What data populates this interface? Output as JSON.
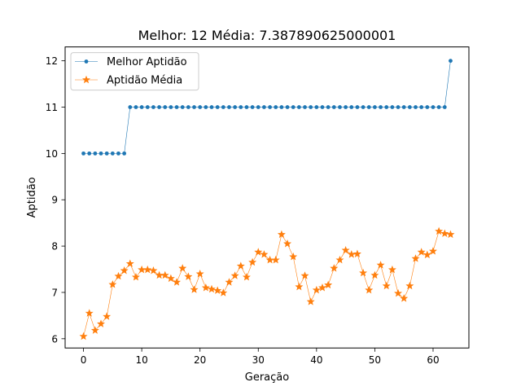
{
  "chart_data": {
    "type": "line",
    "title": "Melhor: 12 Média: 7.387890625000001",
    "xlabel": "Geração",
    "ylabel": "Aptidão",
    "xlim": [
      -3.15,
      66.15
    ],
    "ylim": [
      5.8,
      12.3
    ],
    "xticks": [
      0,
      10,
      20,
      30,
      40,
      50,
      60
    ],
    "yticks": [
      6,
      7,
      8,
      9,
      10,
      11,
      12
    ],
    "grid": false,
    "legend": "upper-left",
    "x": [
      0,
      1,
      2,
      3,
      4,
      5,
      6,
      7,
      8,
      9,
      10,
      11,
      12,
      13,
      14,
      15,
      16,
      17,
      18,
      19,
      20,
      21,
      22,
      23,
      24,
      25,
      26,
      27,
      28,
      29,
      30,
      31,
      32,
      33,
      34,
      35,
      36,
      37,
      38,
      39,
      40,
      41,
      42,
      43,
      44,
      45,
      46,
      47,
      48,
      49,
      50,
      51,
      52,
      53,
      54,
      55,
      56,
      57,
      58,
      59,
      60,
      61,
      62,
      63
    ],
    "series": [
      {
        "name": "Melhor Aptidão",
        "color": "#1f77b4",
        "marker": "circle",
        "values": [
          10,
          10,
          10,
          10,
          10,
          10,
          10,
          10,
          11,
          11,
          11,
          11,
          11,
          11,
          11,
          11,
          11,
          11,
          11,
          11,
          11,
          11,
          11,
          11,
          11,
          11,
          11,
          11,
          11,
          11,
          11,
          11,
          11,
          11,
          11,
          11,
          11,
          11,
          11,
          11,
          11,
          11,
          11,
          11,
          11,
          11,
          11,
          11,
          11,
          11,
          11,
          11,
          11,
          11,
          11,
          11,
          11,
          11,
          11,
          11,
          11,
          11,
          11,
          12
        ]
      },
      {
        "name": "Aptidão Média",
        "color": "#ff7f0e",
        "marker": "star",
        "values": [
          6.05,
          6.55,
          6.18,
          6.32,
          6.48,
          7.17,
          7.35,
          7.47,
          7.62,
          7.33,
          7.49,
          7.49,
          7.47,
          7.37,
          7.37,
          7.3,
          7.22,
          7.52,
          7.34,
          7.06,
          7.4,
          7.1,
          7.07,
          7.04,
          6.99,
          7.22,
          7.36,
          7.57,
          7.33,
          7.65,
          7.87,
          7.82,
          7.7,
          7.7,
          8.25,
          8.05,
          7.77,
          7.12,
          7.36,
          6.8,
          7.05,
          7.1,
          7.16,
          7.52,
          7.7,
          7.91,
          7.82,
          7.83,
          7.42,
          7.05,
          7.37,
          7.59,
          7.14,
          7.49,
          6.98,
          6.87,
          7.14,
          7.73,
          7.87,
          7.81,
          7.89,
          8.32,
          8.27,
          8.25
        ]
      }
    ]
  }
}
